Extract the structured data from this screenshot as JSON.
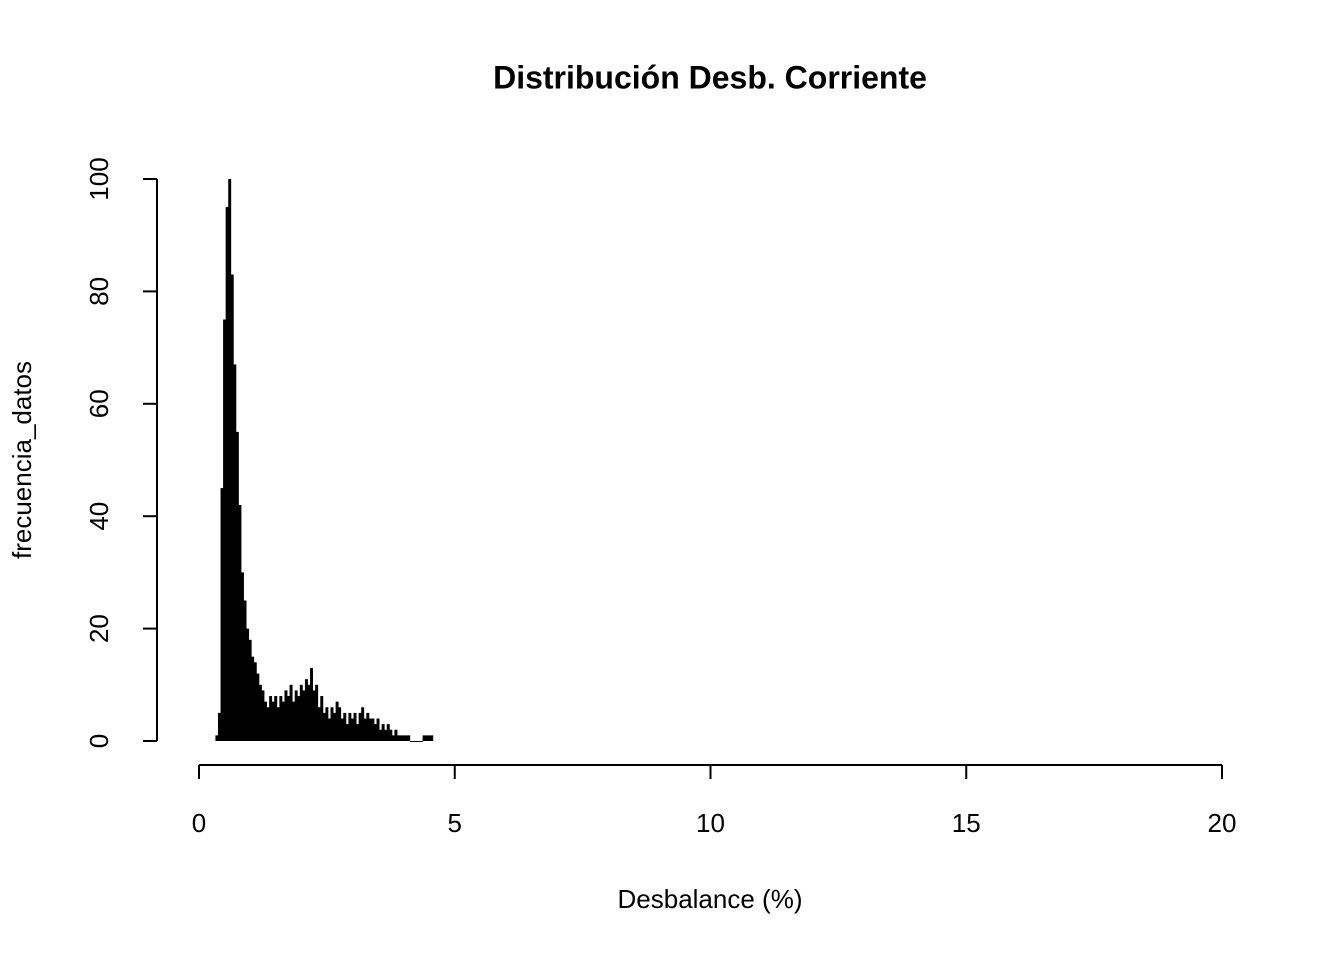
{
  "chart_data": {
    "type": "bar",
    "title": "Distribución Desb. Corriente",
    "x_label": "Desbalance (%)",
    "y_label": "frecuencia_datos",
    "x": [
      0.35,
      0.4,
      0.45,
      0.5,
      0.55,
      0.6,
      0.65,
      0.7,
      0.75,
      0.8,
      0.85,
      0.9,
      0.95,
      1.0,
      1.05,
      1.1,
      1.15,
      1.2,
      1.25,
      1.3,
      1.35,
      1.4,
      1.45,
      1.5,
      1.55,
      1.6,
      1.65,
      1.7,
      1.75,
      1.8,
      1.85,
      1.9,
      1.95,
      2.0,
      2.05,
      2.1,
      2.15,
      2.2,
      2.25,
      2.3,
      2.35,
      2.4,
      2.45,
      2.5,
      2.55,
      2.6,
      2.65,
      2.7,
      2.75,
      2.8,
      2.85,
      2.9,
      2.95,
      3.0,
      3.05,
      3.1,
      3.15,
      3.2,
      3.25,
      3.3,
      3.35,
      3.4,
      3.45,
      3.5,
      3.55,
      3.6,
      3.65,
      3.7,
      3.75,
      3.8,
      3.85,
      3.9,
      3.95,
      4.0,
      4.05,
      4.1,
      4.15,
      4.2,
      4.25,
      4.3,
      4.35,
      4.4,
      4.45,
      4.5,
      4.55
    ],
    "values": [
      1,
      5,
      45,
      75,
      95,
      100,
      83,
      67,
      55,
      42,
      30,
      25,
      20,
      18,
      15,
      14,
      12,
      10,
      9,
      7,
      6,
      8,
      7,
      8,
      6,
      8,
      7,
      9,
      8,
      10,
      7,
      9,
      8,
      10,
      9,
      11,
      10,
      13,
      9,
      10,
      6,
      8,
      5,
      6,
      4,
      6,
      5,
      7,
      6,
      4,
      5,
      3,
      5,
      4,
      5,
      3,
      5,
      6,
      4,
      5,
      4,
      4,
      3,
      4,
      2,
      3,
      2,
      3,
      2,
      1,
      2,
      1,
      1,
      1,
      1,
      1,
      0,
      0,
      0,
      0,
      0,
      1,
      1,
      1,
      1
    ],
    "color": "#000000",
    "xlim": [
      0,
      20
    ],
    "xticks": [
      0,
      5,
      10,
      15,
      20
    ],
    "ylim": [
      0,
      100
    ],
    "yticks": [
      0,
      20,
      40,
      60,
      80,
      100
    ]
  }
}
